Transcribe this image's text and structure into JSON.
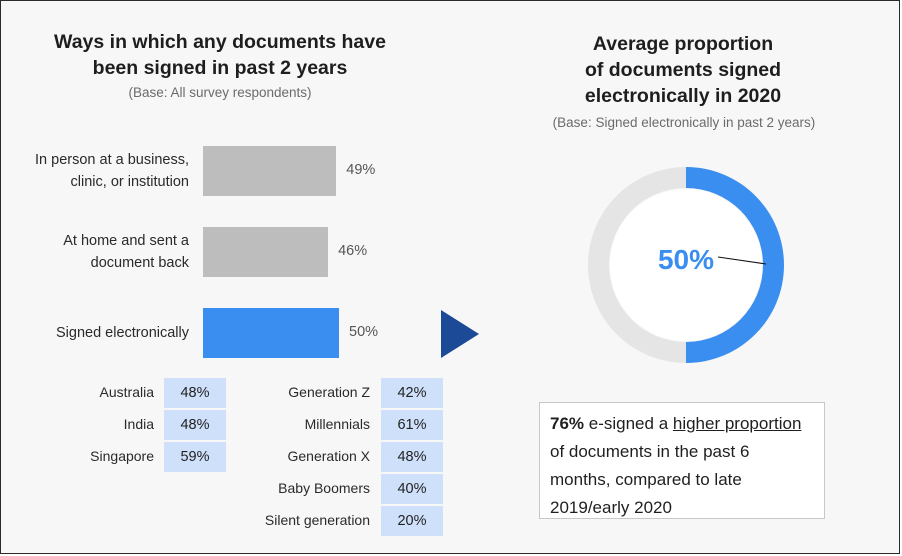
{
  "left_panel": {
    "title_line1": "Ways in which any documents have",
    "title_line2": "been signed in past 2 years",
    "base": "(Base: All survey respondents)"
  },
  "right_panel": {
    "title_line1": "Average proportion",
    "title_line2": "of documents signed",
    "title_line3": "electronically in 2020",
    "base": "(Base:  Signed electronically in past 2 years)",
    "center_label": "50%"
  },
  "callout": {
    "bold": "76%",
    "text1": " e-signed a ",
    "underlined": "higher proportion",
    "text2": " of documents in the past 6 months, compared to late 2019/early 2020"
  },
  "colors": {
    "grey_bar": "#bdbdbd",
    "highlight_bar": "#3a8ef0",
    "donut_remainder": "#e5e5e5",
    "arrow": "#1c4a96",
    "table_cell": "#cfe0fb"
  },
  "chart_data": [
    {
      "type": "bar",
      "orientation": "horizontal",
      "title": "Ways in which any documents have been signed in past 2 years",
      "subtitle": "(Base: All survey respondents)",
      "categories": [
        "In person at a business, clinic, or institution",
        "At home and sent a document back",
        "Signed electronically"
      ],
      "category_lines": [
        [
          "In person at a business,",
          "clinic, or institution"
        ],
        [
          "At home and sent a",
          "document back"
        ],
        [
          "Signed electronically"
        ]
      ],
      "values": [
        49,
        46,
        50
      ],
      "value_labels": [
        "49%",
        "46%",
        "50%"
      ],
      "highlight_index": 2,
      "unit": "%"
    },
    {
      "type": "pie",
      "donut": true,
      "title": "Average proportion of documents signed electronically in 2020",
      "subtitle": "(Base:  Signed electronically in past 2 years)",
      "values": [
        50,
        50
      ],
      "center_label": "50%"
    },
    {
      "type": "table",
      "rows": [
        {
          "label": "Australia",
          "value": "48%"
        },
        {
          "label": "India",
          "value": "48%"
        },
        {
          "label": "Singapore",
          "value": "59%"
        }
      ]
    },
    {
      "type": "table",
      "rows": [
        {
          "label": "Generation Z",
          "value": "42%"
        },
        {
          "label": "Millennials",
          "value": "61%"
        },
        {
          "label": "Generation X",
          "value": "48%"
        },
        {
          "label": "Baby Boomers",
          "value": "40%"
        },
        {
          "label": "Silent generation",
          "value": "20%"
        }
      ]
    }
  ]
}
